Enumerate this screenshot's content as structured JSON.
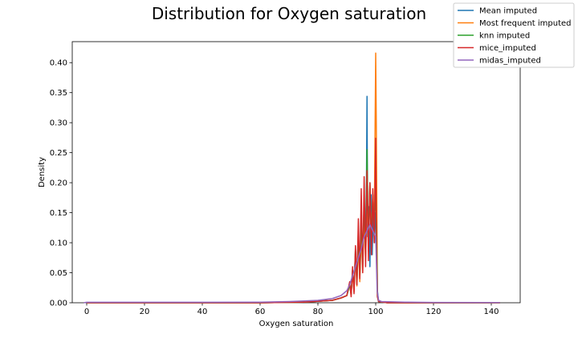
{
  "chart_data": {
    "type": "line",
    "title": "Distribution for Oxygen saturation",
    "xlabel": "Oxygen saturation",
    "ylabel": "Density",
    "xlim": [
      -5,
      150
    ],
    "ylim": [
      0,
      0.435
    ],
    "xticks": [
      0,
      20,
      40,
      60,
      80,
      100,
      120,
      140
    ],
    "xtick_labels": [
      "0",
      "20",
      "40",
      "60",
      "80",
      "100",
      "120",
      "140"
    ],
    "yticks": [
      0,
      0.05,
      0.1,
      0.15,
      0.2,
      0.25,
      0.3,
      0.35,
      0.4
    ],
    "ytick_labels": [
      "0.00",
      "0.05",
      "0.10",
      "0.15",
      "0.20",
      "0.25",
      "0.30",
      "0.35",
      "0.40"
    ],
    "grid": false,
    "legend_position": "upper-right (outside)",
    "series": [
      {
        "name": "Mean imputed",
        "color": "#1f77b4",
        "x": [
          0,
          60,
          75,
          85,
          88,
          90,
          91,
          91.5,
          92,
          92.5,
          93,
          93.5,
          94,
          94.5,
          95,
          95.5,
          96,
          96.4,
          96.8,
          97,
          97.2,
          97.6,
          98,
          98.4,
          98.8,
          99.2,
          99.6,
          100,
          100.3,
          100.6,
          101,
          104,
          120,
          143
        ],
        "y": [
          0,
          0,
          0.001,
          0.004,
          0.008,
          0.012,
          0.03,
          0.015,
          0.055,
          0.02,
          0.085,
          0.03,
          0.11,
          0.04,
          0.13,
          0.06,
          0.17,
          0.09,
          0.2,
          0.344,
          0.11,
          0.16,
          0.06,
          0.18,
          0.08,
          0.16,
          0.1,
          0.15,
          0.12,
          0.02,
          0.002,
          0.0,
          0,
          0
        ]
      },
      {
        "name": "Most frequent imputed",
        "color": "#ff7f0e",
        "x": [
          0,
          60,
          75,
          85,
          88,
          90,
          91,
          91.5,
          92,
          92.5,
          93,
          93.5,
          94,
          94.5,
          95,
          95.5,
          96,
          96.5,
          97,
          97.5,
          98,
          98.5,
          99,
          99.5,
          99.8,
          100,
          100.2,
          100.6,
          101,
          104,
          120,
          143
        ],
        "y": [
          0,
          0,
          0.001,
          0.004,
          0.008,
          0.012,
          0.03,
          0.012,
          0.05,
          0.018,
          0.08,
          0.028,
          0.1,
          0.035,
          0.12,
          0.05,
          0.15,
          0.07,
          0.18,
          0.09,
          0.2,
          0.11,
          0.18,
          0.13,
          0.3,
          0.416,
          0.3,
          0.01,
          0.002,
          0,
          0,
          0
        ]
      },
      {
        "name": "knn imputed",
        "color": "#2ca02c",
        "x": [
          0,
          60,
          75,
          85,
          88,
          90,
          91,
          91.5,
          92,
          92.5,
          93,
          93.5,
          94,
          94.5,
          95,
          95.5,
          96,
          96.5,
          97,
          97.5,
          98,
          98.5,
          99,
          99.5,
          100,
          100.3,
          100.6,
          101,
          104,
          120,
          143
        ],
        "y": [
          0,
          0,
          0.001,
          0.004,
          0.008,
          0.012,
          0.03,
          0.015,
          0.055,
          0.022,
          0.09,
          0.035,
          0.12,
          0.045,
          0.14,
          0.065,
          0.17,
          0.08,
          0.255,
          0.085,
          0.2,
          0.1,
          0.18,
          0.11,
          0.2,
          0.12,
          0.01,
          0.002,
          0,
          0,
          0
        ]
      },
      {
        "name": "mice_imputed",
        "color": "#d62728",
        "x": [
          0,
          60,
          75,
          85,
          88,
          90,
          91,
          91.5,
          92,
          92.5,
          93,
          93.5,
          94,
          94.5,
          95,
          95.5,
          96,
          96.5,
          97,
          97.5,
          98,
          98.5,
          99,
          99.5,
          100,
          100.3,
          100.6,
          101,
          104,
          120,
          143
        ],
        "y": [
          0,
          0,
          0.001,
          0.004,
          0.008,
          0.012,
          0.035,
          0.01,
          0.06,
          0.015,
          0.095,
          0.03,
          0.14,
          0.04,
          0.19,
          0.05,
          0.21,
          0.06,
          0.22,
          0.07,
          0.2,
          0.08,
          0.19,
          0.1,
          0.274,
          0.08,
          0.01,
          0.002,
          0,
          0,
          0
        ]
      },
      {
        "name": "midas_imputed",
        "color": "#9467bd",
        "x": [
          -1,
          0,
          40,
          60,
          70,
          80,
          85,
          88,
          90,
          91,
          92,
          93,
          94,
          95,
          96,
          97,
          98,
          99,
          100,
          100.5,
          101,
          102,
          110,
          120,
          143
        ],
        "y": [
          0.0,
          0.0008,
          0.0008,
          0.001,
          0.002,
          0.004,
          0.007,
          0.012,
          0.02,
          0.03,
          0.045,
          0.06,
          0.075,
          0.09,
          0.11,
          0.12,
          0.13,
          0.12,
          0.11,
          0.02,
          0.004,
          0.002,
          0.001,
          0.0005,
          0.0003
        ]
      }
    ]
  }
}
